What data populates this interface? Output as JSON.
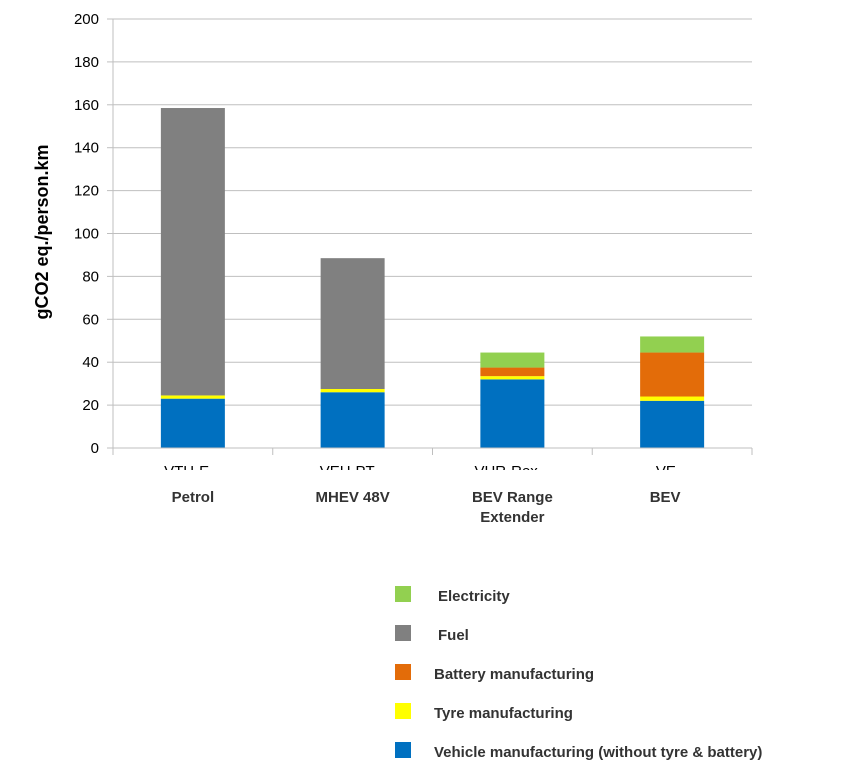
{
  "chart_data": {
    "type": "bar",
    "stacked": true,
    "title": "",
    "xlabel": "",
    "ylabel": "gCO2 eq./person.km",
    "ylim": [
      0,
      200
    ],
    "yticks": [
      0,
      20,
      40,
      60,
      80,
      100,
      120,
      140,
      160,
      180,
      200
    ],
    "grid": true,
    "legend_position": "bottom",
    "categories": [
      {
        "label": [
          "Petrol"
        ],
        "ghost": "VTH-E..."
      },
      {
        "label": [
          "MHEV 48V"
        ],
        "ghost": "VEH-PT..."
      },
      {
        "label": [
          "BEV Range",
          "Extender"
        ],
        "ghost": "VHR-Rex..."
      },
      {
        "label": [
          "BEV"
        ],
        "ghost": "VE..."
      }
    ],
    "series": [
      {
        "name": "Vehicle manufacturing (without tyre & battery)",
        "color": "#0070C0",
        "values": [
          23,
          26,
          32,
          22
        ]
      },
      {
        "name": "Tyre manufacturing",
        "color": "#FFFF00",
        "values": [
          1.5,
          1.5,
          1.5,
          2
        ]
      },
      {
        "name": "Battery manufacturing",
        "color": "#E36C09",
        "values": [
          0,
          0,
          4,
          20.5
        ]
      },
      {
        "name": "Fuel",
        "color": "#808080",
        "values": [
          134,
          61,
          0,
          0
        ]
      },
      {
        "name": "Electricity",
        "color": "#92D050",
        "values": [
          0,
          0,
          7,
          7.5
        ]
      }
    ],
    "legend_order": [
      "Electricity",
      "Fuel",
      "Battery manufacturing",
      "Tyre manufacturing",
      "Vehicle manufacturing (without tyre & battery)"
    ]
  }
}
